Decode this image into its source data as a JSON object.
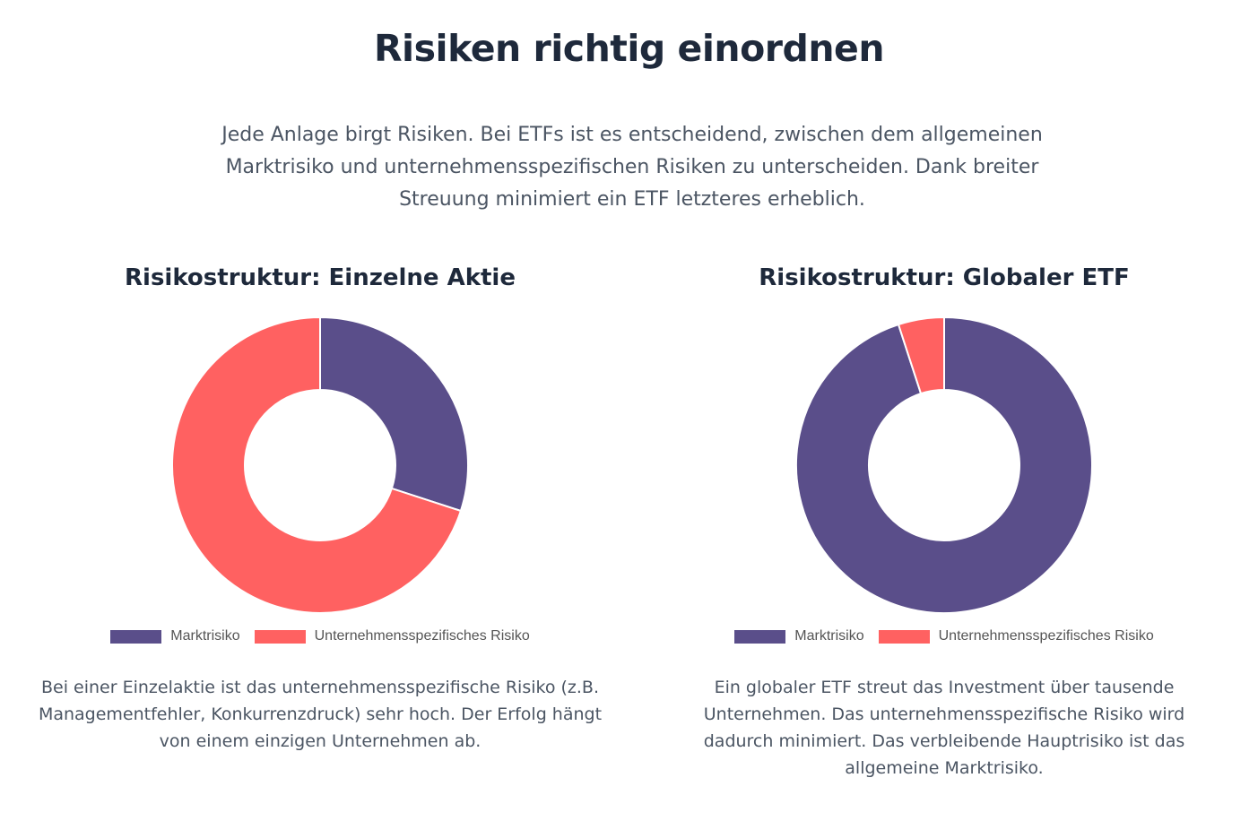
{
  "page": {
    "title": "Risiken richtig einordnen",
    "intro": "Jede Anlage birgt Risiken. Bei ETFs ist es entscheidend, zwischen dem allgemeinen Marktrisiko und unternehmensspezifischen Risiken zu unterscheiden. Dank breiter Streuung minimiert ein ETF letzteres erheblich."
  },
  "colors": {
    "market": "#5a4e8a",
    "company": "#ff6161"
  },
  "chart_data": [
    {
      "type": "pie",
      "variant": "doughnut",
      "title": "Risikostruktur: Einzelne Aktie",
      "categories": [
        "Marktrisiko",
        "Unternehmensspezifisches Risiko"
      ],
      "values": [
        30,
        70
      ],
      "colors": [
        "#5a4e8a",
        "#ff6161"
      ],
      "legend": "bottom",
      "description": "Bei einer Einzelaktie ist das unternehmensspezifische Risiko (z.B. Managementfehler, Konkurrenzdruck) sehr hoch. Der Erfolg hängt von einem einzigen Unternehmen ab."
    },
    {
      "type": "pie",
      "variant": "doughnut",
      "title": "Risikostruktur: Globaler ETF",
      "categories": [
        "Marktrisiko",
        "Unternehmensspezifisches Risiko"
      ],
      "values": [
        95,
        5
      ],
      "colors": [
        "#5a4e8a",
        "#ff6161"
      ],
      "legend": "bottom",
      "description": "Ein globaler ETF streut das Investment über tausende Unternehmen. Das unternehmensspezifische Risiko wird dadurch minimiert. Das verbleibende Hauptrisiko ist das allgemeine Marktrisiko."
    }
  ]
}
